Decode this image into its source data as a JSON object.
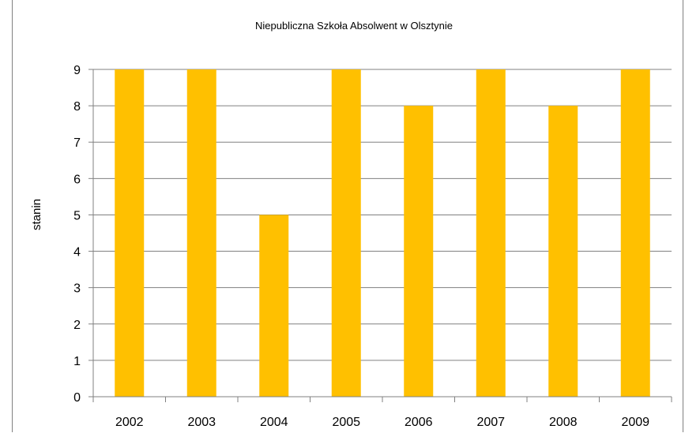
{
  "chart_data": {
    "type": "bar",
    "title": "Niepubliczna Szkoła Absolwent w Olsztynie",
    "xlabel": "",
    "ylabel": "stanin",
    "categories": [
      "2002",
      "2003",
      "2004",
      "2005",
      "2006",
      "2007",
      "2008",
      "2009"
    ],
    "values": [
      9,
      9,
      5,
      9,
      8,
      9,
      8,
      9
    ],
    "ylim": [
      0,
      9
    ],
    "yticks": [
      "0",
      "1",
      "2",
      "3",
      "4",
      "5",
      "6",
      "7",
      "8",
      "9"
    ],
    "grid": true,
    "legend": "none",
    "bar_color": "#FFC000",
    "grid_color": "#808080"
  }
}
